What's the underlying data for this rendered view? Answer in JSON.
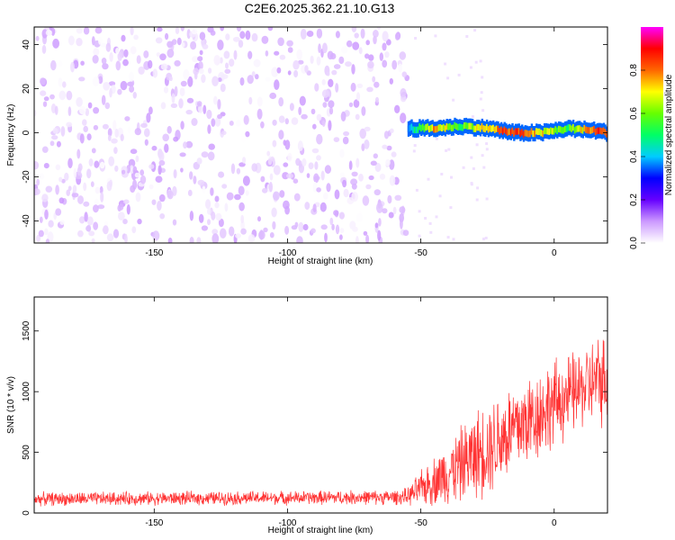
{
  "title": "C2E6.2025.362.21.10.G13",
  "chart_data": [
    {
      "type": "heatmap",
      "xlabel": "Height of straight line (km)",
      "ylabel": "Frequency (Hz)",
      "xlim": [
        -195,
        20
      ],
      "ylim": [
        -50,
        48
      ],
      "x_ticks": [
        -150,
        -100,
        -50,
        0
      ],
      "y_ticks": [
        -40,
        -20,
        0,
        20,
        40
      ],
      "colorbar": {
        "label": "Normalized spectral amplitude",
        "range": [
          0,
          1
        ],
        "ticks": [
          0.0,
          0.2,
          0.4,
          0.6,
          0.8
        ],
        "colormap": [
          "#ffffff",
          "#cc99ff",
          "#6600ff",
          "#0000ff",
          "#00ccff",
          "#00ff66",
          "#66ff00",
          "#ffff00",
          "#ff6600",
          "#ff0000",
          "#ff00ff"
        ]
      },
      "features": {
        "noise_region_x": [
          -195,
          -55
        ],
        "noise_amplitude_range": [
          0.0,
          0.1
        ],
        "signal_band": {
          "x": [
            -55,
            -45,
            -35,
            -25,
            -15,
            -5,
            5,
            15,
            20
          ],
          "freq": [
            2,
            2,
            3,
            2,
            0,
            0,
            2,
            1,
            0
          ],
          "amplitude": [
            0.4,
            0.75,
            0.55,
            0.75,
            0.85,
            0.7,
            0.55,
            0.85,
            0.8
          ]
        }
      }
    },
    {
      "type": "line",
      "xlabel": "Height of straight line (km)",
      "ylabel": "SNR (10 * v/v)",
      "xlim": [
        -195,
        20
      ],
      "ylim": [
        0,
        1780
      ],
      "x_ticks": [
        -150,
        -100,
        -50,
        0
      ],
      "y_ticks": [
        0,
        500,
        1000,
        1500
      ],
      "color": "#ff3333",
      "envelope": {
        "x": [
          -195,
          -150,
          -100,
          -60,
          -55,
          -50,
          -40,
          -30,
          -20,
          -10,
          0,
          10,
          15,
          20
        ],
        "mean": [
          115,
          120,
          125,
          130,
          135,
          200,
          330,
          470,
          620,
          760,
          900,
          1020,
          1080,
          1120
        ],
        "spread": [
          65,
          65,
          65,
          70,
          80,
          170,
          300,
          420,
          480,
          460,
          420,
          380,
          420,
          450
        ]
      }
    }
  ]
}
